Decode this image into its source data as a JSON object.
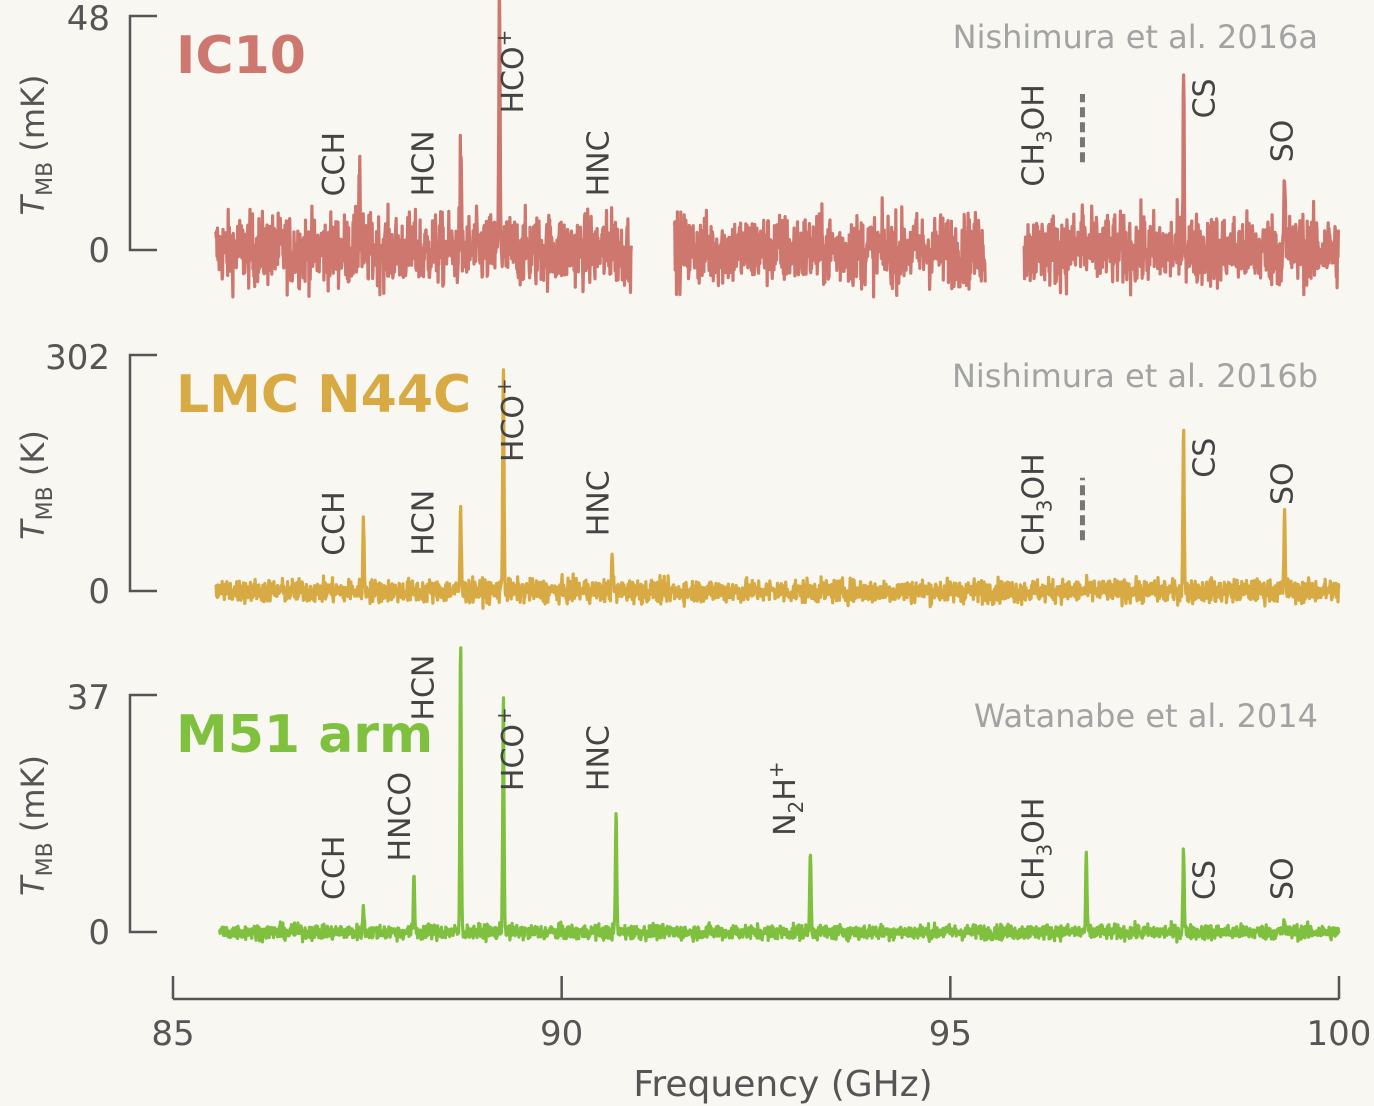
{
  "chart_data": {
    "type": "line",
    "xlabel": "Frequency (GHz)",
    "xlim": [
      85,
      100
    ],
    "xticks": [
      "85",
      "90",
      "95",
      "100"
    ],
    "tick_values": [
      85,
      90,
      95,
      100
    ],
    "panels": [
      {
        "name": "IC10",
        "reference": "Nishimura et al. 2016a",
        "ylabel_symbol": "T",
        "ylabel_sub": "MB",
        "ylabel_unit": "(mK)",
        "ylim": [
          0,
          48
        ],
        "ytick_top": "48",
        "ytick_zero": "0",
        "color": "#cd776e",
        "noise": 7,
        "coverage": [
          [
            85.55,
            90.9
          ],
          [
            91.45,
            95.45
          ],
          [
            95.95,
            100.0
          ]
        ],
        "peaks": [
          {
            "x": 87.4,
            "y": 18
          },
          {
            "x": 88.7,
            "y": 19
          },
          {
            "x": 89.2,
            "y": 52
          },
          {
            "x": 90.65,
            "y": 7
          },
          {
            "x": 96.7,
            "y": 7
          },
          {
            "x": 98.0,
            "y": 37
          },
          {
            "x": 99.3,
            "y": 14
          }
        ],
        "line_labels": [
          {
            "text": "CCH",
            "x": 87.2,
            "y": 11
          },
          {
            "text": "HCN",
            "x": 88.35,
            "y": 11
          },
          {
            "text": "HCO",
            "sup": "+",
            "x": 89.5,
            "y": 28
          },
          {
            "text": "HNC",
            "x": 90.6,
            "y": 11
          },
          {
            "text": "CH",
            "sub": "3",
            "rest": "OH",
            "x": 96.2,
            "y": 13
          },
          {
            "text": "CS",
            "x": 98.4,
            "y": 27
          },
          {
            "text": "SO",
            "x": 99.4,
            "y": 18
          }
        ],
        "dashed_marker": {
          "x": 96.7,
          "y0": 18,
          "y1": 32
        }
      },
      {
        "name": "LMC N44C",
        "reference": "Nishimura et al. 2016b",
        "ylabel_symbol": "T",
        "ylabel_sub": "MB",
        "ylabel_unit": "(K)",
        "ylim": [
          0,
          302
        ],
        "ytick_top": "302",
        "ytick_zero": "0",
        "color": "#d8aa43",
        "noise": 14,
        "coverage": [
          [
            85.55,
            100.0
          ]
        ],
        "peaks": [
          {
            "x": 87.45,
            "y": 90
          },
          {
            "x": 88.7,
            "y": 105
          },
          {
            "x": 89.25,
            "y": 295
          },
          {
            "x": 90.65,
            "y": 52
          },
          {
            "x": 98.0,
            "y": 205
          },
          {
            "x": 99.3,
            "y": 98
          }
        ],
        "line_labels": [
          {
            "text": "CCH",
            "x": 87.2,
            "y": 45
          },
          {
            "text": "HCN",
            "x": 88.35,
            "y": 45
          },
          {
            "text": "HCO",
            "sup": "+",
            "x": 89.5,
            "y": 165
          },
          {
            "text": "HNC",
            "x": 90.6,
            "y": 70
          },
          {
            "text": "CH",
            "sub": "3",
            "rest": "OH",
            "x": 96.2,
            "y": 45
          },
          {
            "text": "CS",
            "x": 98.4,
            "y": 145
          },
          {
            "text": "SO",
            "x": 99.4,
            "y": 110
          }
        ],
        "dashed_marker": {
          "x": 96.7,
          "y0": 65,
          "y1": 145
        }
      },
      {
        "name": "M51 arm",
        "reference": "Watanabe et al. 2014",
        "ylabel_symbol": "T",
        "ylabel_sub": "MB",
        "ylabel_unit": "(mK)",
        "ylim": [
          0,
          37
        ],
        "ytick_top": "37",
        "ytick_zero": "0",
        "color": "#80c03f",
        "noise": 1.1,
        "coverage": [
          [
            85.6,
            100.0
          ]
        ],
        "peaks": [
          {
            "x": 87.45,
            "y": 4
          },
          {
            "x": 88.1,
            "y": 9
          },
          {
            "x": 88.7,
            "y": 45
          },
          {
            "x": 89.25,
            "y": 37
          },
          {
            "x": 90.7,
            "y": 19
          },
          {
            "x": 93.2,
            "y": 13
          },
          {
            "x": 96.75,
            "y": 12
          },
          {
            "x": 98.0,
            "y": 13
          },
          {
            "x": 99.3,
            "y": 1.8
          }
        ],
        "line_labels": [
          {
            "text": "CCH",
            "x": 87.2,
            "y": 5
          },
          {
            "text": "HNCO",
            "x": 88.05,
            "y": 11
          },
          {
            "text": "HCN",
            "x": 88.35,
            "y": 33
          },
          {
            "text": "HCO",
            "sup": "+",
            "x": 89.5,
            "y": 22
          },
          {
            "text": "HNC",
            "x": 90.6,
            "y": 22
          },
          {
            "text": "N",
            "sub": "2",
            "rest": "H",
            "sup": "+",
            "x": 93.0,
            "y": 15
          },
          {
            "text": "CH",
            "sub": "3",
            "rest": "OH",
            "x": 96.2,
            "y": 5
          },
          {
            "text": "CS",
            "x": 98.4,
            "y": 5
          },
          {
            "text": "SO",
            "x": 99.4,
            "y": 5
          }
        ]
      }
    ]
  }
}
